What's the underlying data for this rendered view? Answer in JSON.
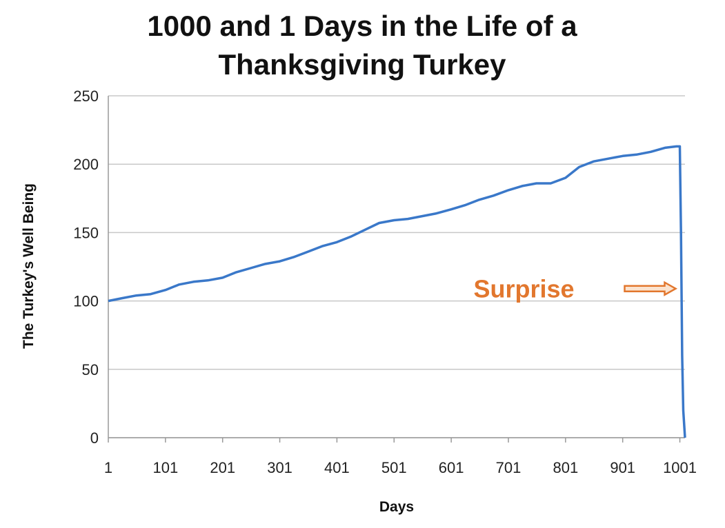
{
  "chart_data": {
    "type": "line",
    "title_lines": [
      "1000 and 1 Days in the Life of a",
      "Thanksgiving Turkey"
    ],
    "xlabel": "Days",
    "ylabel": "The Turkey's Well Being",
    "xlim": [
      1,
      1010
    ],
    "ylim": [
      0,
      250
    ],
    "x_ticks": [
      "1",
      "101",
      "201",
      "301",
      "401",
      "501",
      "601",
      "701",
      "801",
      "901",
      "1001"
    ],
    "y_ticks": [
      "0",
      "50",
      "100",
      "150",
      "200",
      "250"
    ],
    "grid": true,
    "line_color": "#3a78c9",
    "annotation": {
      "text": "Surprise",
      "color": "#e2772e",
      "x": 1001,
      "y": 109
    },
    "series": [
      {
        "x": [
          1,
          25,
          50,
          75,
          101,
          125,
          150,
          175,
          201,
          225,
          250,
          275,
          301,
          325,
          350,
          375,
          401,
          425,
          450,
          475,
          501,
          525,
          550,
          575,
          601,
          625,
          650,
          675,
          701,
          725,
          750,
          775,
          801,
          825,
          850,
          875,
          901,
          925,
          950,
          975,
          995,
          1001,
          1003,
          1005,
          1007,
          1010
        ],
        "y": [
          100,
          102,
          104,
          105,
          108,
          112,
          114,
          115,
          117,
          121,
          124,
          127,
          129,
          132,
          136,
          140,
          143,
          147,
          152,
          157,
          159,
          160,
          162,
          164,
          167,
          170,
          174,
          177,
          181,
          184,
          186,
          186,
          190,
          198,
          202,
          204,
          206,
          207,
          209,
          212,
          213,
          213,
          150,
          60,
          20,
          0
        ]
      }
    ]
  }
}
